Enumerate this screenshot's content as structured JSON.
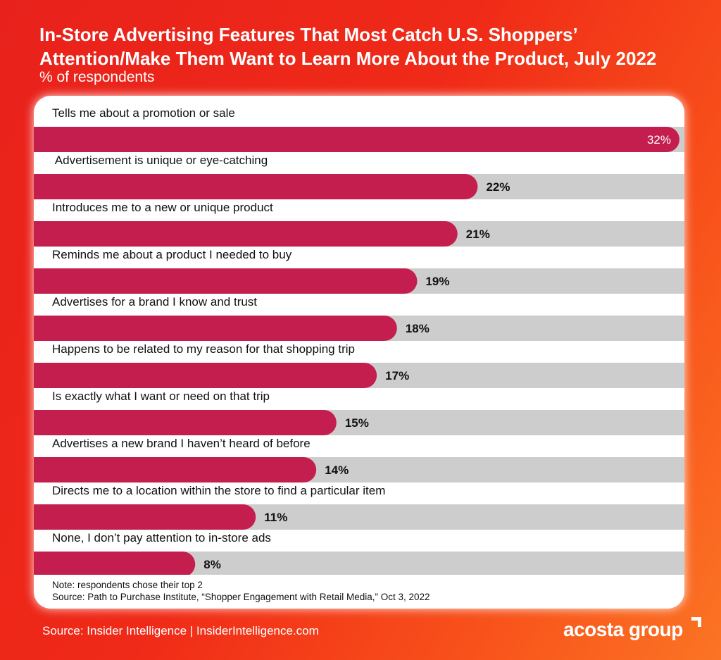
{
  "header": {
    "title": "In-Store Advertising Features That Most Catch U.S. Shoppers’ Attention/Make Them Want to Learn More About the Product, July 2022",
    "subtitle": "% of respondents"
  },
  "chart_data": {
    "type": "bar",
    "orientation": "horizontal",
    "categories": [
      "Tells me about a promotion or sale",
      " Advertisement is unique or eye-catching",
      "Introduces me to a new or unique product",
      "Reminds me about a product I needed to buy",
      "Advertises for a brand I know and trust",
      "Happens to be related to my reason for that shopping trip",
      "Is exactly what I want or need on that trip",
      "Advertises a new brand I haven’t heard of before",
      "Directs me to a location within the store to find a particular item",
      "None, I don’t pay attention to in-store ads"
    ],
    "values": [
      32,
      22,
      21,
      19,
      18,
      17,
      15,
      14,
      11,
      8
    ],
    "value_labels": [
      "32%",
      "22%",
      "21%",
      "19%",
      "18%",
      "17%",
      "15%",
      "14%",
      "11%",
      "8%"
    ],
    "xlim": [
      0,
      32
    ],
    "grid": false,
    "legend": "none",
    "colors": {
      "bar": "#c41e4f",
      "track": "#cdcdcd"
    }
  },
  "notes": {
    "note": "Note: respondents chose their top 2",
    "source": "Source: Path to Purchase Institute, “Shopper Engagement with Retail Media,” Oct 3, 2022"
  },
  "footer": {
    "source": "Source: Insider Intelligence | InsiderIntelligence.com",
    "logo_text": "acosta group",
    "logo_icon": "corner-bracket-icon"
  }
}
